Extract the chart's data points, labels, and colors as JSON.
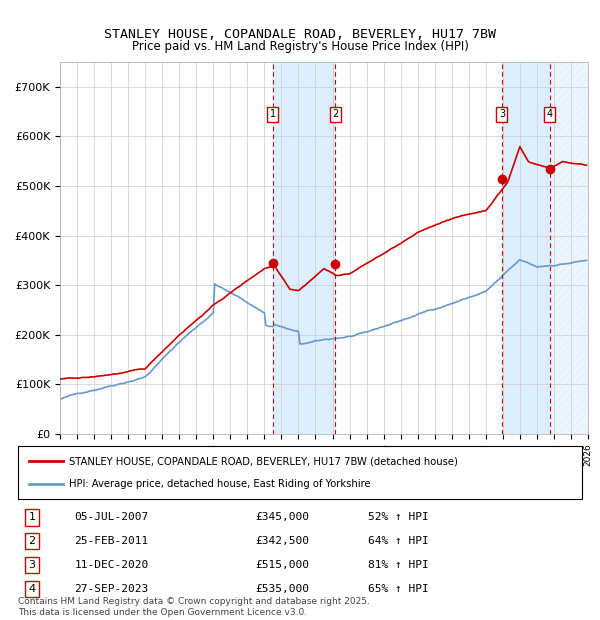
{
  "title": "STANLEY HOUSE, COPANDALE ROAD, BEVERLEY, HU17 7BW",
  "subtitle": "Price paid vs. HM Land Registry's House Price Index (HPI)",
  "legend_house": "STANLEY HOUSE, COPANDALE ROAD, BEVERLEY, HU17 7BW (detached house)",
  "legend_hpi": "HPI: Average price, detached house, East Riding of Yorkshire",
  "footer": "Contains HM Land Registry data © Crown copyright and database right 2025.\nThis data is licensed under the Open Government Licence v3.0.",
  "sales": [
    {
      "num": 1,
      "date": "05-JUL-2007",
      "price": "£345,000",
      "hpi": "52% ↑ HPI",
      "year": 2007.5
    },
    {
      "num": 2,
      "date": "25-FEB-2011",
      "price": "£342,500",
      "hpi": "64% ↑ HPI",
      "year": 2011.15
    },
    {
      "num": 3,
      "date": "11-DEC-2020",
      "price": "£515,000",
      "hpi": "81% ↑ HPI",
      "year": 2020.95
    },
    {
      "num": 4,
      "date": "27-SEP-2023",
      "price": "£535,000",
      "hpi": "65% ↑ HPI",
      "year": 2023.75
    }
  ],
  "house_color": "#cc0000",
  "hpi_color": "#6699cc",
  "shade_color": "#ddeeff",
  "vline_color": "#cc0000",
  "bg_color": "#ffffff",
  "grid_color": "#cccccc",
  "hatch_color": "#cccccc",
  "xlim": [
    1995,
    2026
  ],
  "ylim": [
    0,
    750000
  ],
  "yticks": [
    0,
    100000,
    200000,
    300000,
    400000,
    500000,
    600000,
    700000
  ]
}
